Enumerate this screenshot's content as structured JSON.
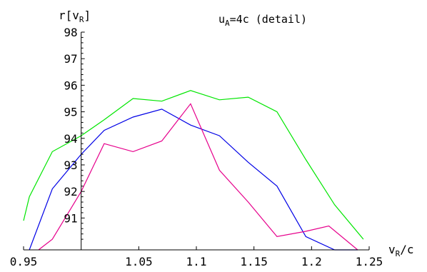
{
  "chart_data": {
    "type": "line",
    "xlabel": {
      "main": "v",
      "sub": "R",
      "rest": "/c"
    },
    "ylabel": {
      "main": "r[v",
      "sub": "R",
      "rest": "]"
    },
    "annotation": {
      "main": "u",
      "sub": "A",
      "rest": "=4c  (detail)"
    },
    "xlim": [
      0.95,
      1.25
    ],
    "ylim": [
      89.8,
      98.0
    ],
    "x_axis_at_y": 89.8,
    "y_axis_at_x": 1.0,
    "x_ticks": [
      0.95,
      1.05,
      1.1,
      1.15,
      1.2,
      1.25
    ],
    "x_tick_labels": [
      "0.95",
      "1.05",
      "1.1",
      "1.15",
      "1.2",
      "1.25"
    ],
    "y_ticks": [
      91,
      92,
      93,
      94,
      95,
      96,
      97,
      98
    ],
    "y_tick_labels": [
      "91",
      "92",
      "93",
      "94",
      "95",
      "96",
      "97",
      "98"
    ],
    "grid": false,
    "series": [
      {
        "color": "#00e600",
        "x": [
          0.95,
          0.955,
          0.975,
          1.0,
          1.02,
          1.045,
          1.07,
          1.095,
          1.12,
          1.145,
          1.17,
          1.195,
          1.22,
          1.245
        ],
        "y": [
          90.9,
          91.8,
          93.5,
          94.1,
          94.7,
          95.5,
          95.4,
          95.8,
          95.45,
          95.55,
          95.0,
          93.2,
          91.5,
          90.2
        ]
      },
      {
        "color": "#0000e6",
        "x": [
          0.955,
          0.975,
          1.0,
          1.02,
          1.045,
          1.07,
          1.095,
          1.12,
          1.145,
          1.17,
          1.195,
          1.22,
          1.24
        ],
        "y": [
          89.8,
          92.1,
          93.4,
          94.3,
          94.8,
          95.1,
          94.5,
          94.1,
          93.1,
          92.2,
          90.3,
          89.8,
          89.8
        ]
      },
      {
        "color": "#e6008c",
        "x": [
          0.963,
          0.975,
          1.0,
          1.02,
          1.045,
          1.07,
          1.095,
          1.12,
          1.145,
          1.17,
          1.195,
          1.215,
          1.24
        ],
        "y": [
          89.8,
          90.2,
          92.0,
          93.8,
          93.5,
          93.9,
          95.3,
          92.8,
          91.6,
          90.3,
          90.5,
          90.7,
          89.8
        ]
      }
    ]
  }
}
